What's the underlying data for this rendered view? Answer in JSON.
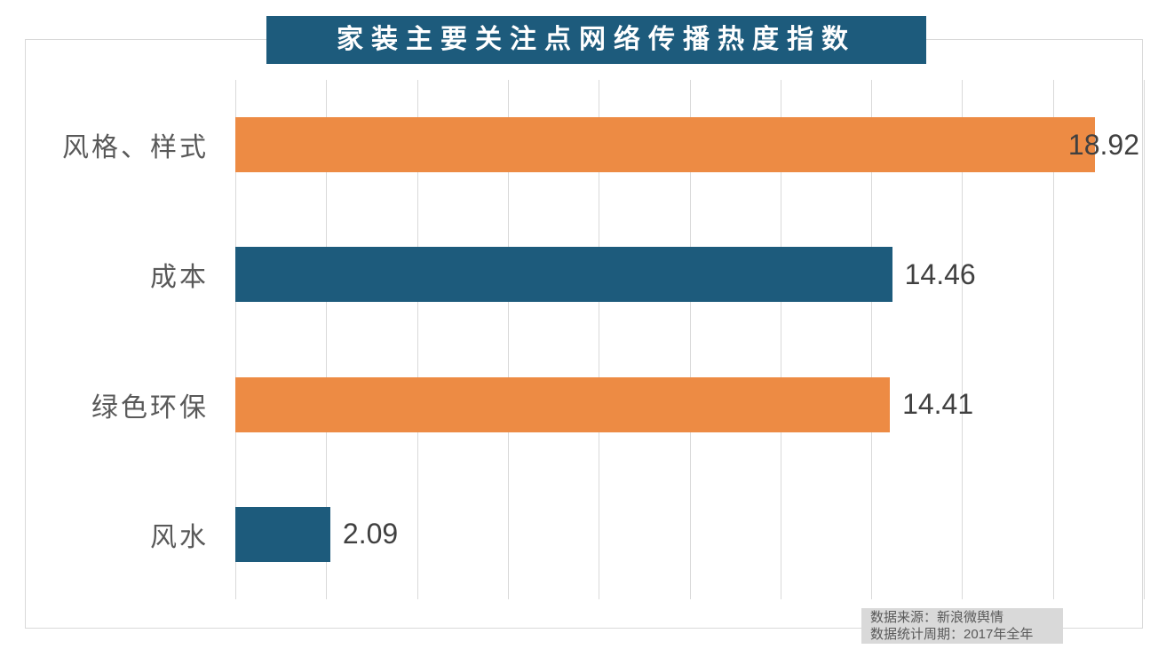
{
  "chart_data": {
    "type": "bar",
    "orientation": "horizontal",
    "title": "家装主要关注点网络传播热度指数",
    "categories": [
      "风格、样式",
      "成本",
      "绿色环保",
      "风水"
    ],
    "values": [
      18.92,
      14.46,
      14.41,
      2.09
    ],
    "data_labels": [
      "18.92",
      "14.46",
      "14.41",
      "2.09"
    ],
    "bar_colors": [
      "#ED8B44",
      "#1D5B7C",
      "#ED8B44",
      "#1D5B7C"
    ],
    "xlim": [
      0,
      20
    ],
    "gridline_interval": 2,
    "grid": "vertical",
    "legend": "none",
    "axis_tick_labels": "none"
  },
  "colors": {
    "orange": "#ED8B44",
    "teal": "#1D5B7C",
    "title_bg": "#1D5B7C",
    "title_text": "#FFFFFF",
    "gridline": "#D9D9D9",
    "category_text": "#595959",
    "value_text": "#404040",
    "note_bg": "#D9D9D9",
    "note_text": "#595959"
  },
  "source_note": {
    "lines": [
      "数据来源：新浪微舆情",
      "数据统计周期：2017年全年"
    ]
  }
}
